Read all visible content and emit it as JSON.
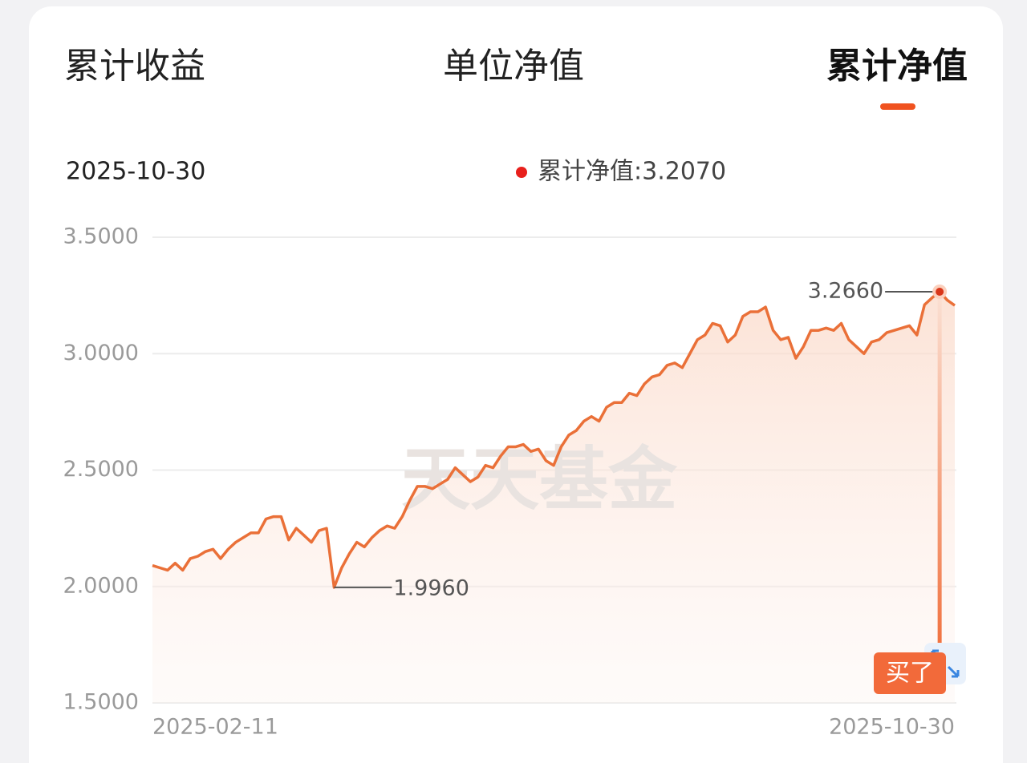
{
  "tabs": {
    "items": [
      "累计收益",
      "单位净值",
      "累计净值"
    ],
    "active": 2
  },
  "header": {
    "date": "2025-10-30",
    "legend_text": "累计净值:3.2070"
  },
  "watermark": "天天基金",
  "button": "买了",
  "chart_data": {
    "type": "line",
    "categories": [
      "2025-02-11",
      null,
      null,
      null,
      null,
      null,
      null,
      null,
      null,
      null,
      null,
      null,
      null,
      null,
      null,
      null,
      null,
      null,
      null,
      null,
      null,
      null,
      null,
      null,
      null,
      null,
      null,
      null,
      null,
      null,
      null,
      null,
      null,
      null,
      null,
      null,
      null,
      null,
      null,
      null,
      null,
      null,
      null,
      null,
      null,
      null,
      null,
      null,
      null,
      null,
      null,
      null,
      null,
      null,
      null,
      null,
      null,
      null,
      null,
      null,
      null,
      null,
      null,
      null,
      null,
      null,
      null,
      null,
      null,
      null,
      null,
      null,
      null,
      null,
      null,
      null,
      null,
      null,
      null,
      null,
      null,
      null,
      null,
      null,
      null,
      null,
      null,
      null,
      null,
      null,
      null,
      null,
      null,
      null,
      null,
      null,
      null,
      null,
      null,
      null,
      null,
      null,
      null,
      null,
      null,
      null,
      "2025-10-30"
    ],
    "series": [
      {
        "name": "累计净值",
        "color": "#ea7038",
        "values": [
          2.09,
          2.08,
          2.07,
          2.1,
          2.07,
          2.12,
          2.13,
          2.15,
          2.16,
          2.12,
          2.16,
          2.19,
          2.21,
          2.23,
          2.23,
          2.29,
          2.3,
          2.3,
          2.2,
          2.25,
          2.22,
          2.19,
          2.24,
          2.25,
          1.996,
          2.08,
          2.14,
          2.19,
          2.17,
          2.21,
          2.24,
          2.26,
          2.25,
          2.3,
          2.37,
          2.43,
          2.43,
          2.42,
          2.44,
          2.46,
          2.51,
          2.48,
          2.45,
          2.47,
          2.52,
          2.51,
          2.56,
          2.6,
          2.6,
          2.61,
          2.58,
          2.59,
          2.54,
          2.52,
          2.6,
          2.65,
          2.67,
          2.71,
          2.73,
          2.71,
          2.77,
          2.79,
          2.79,
          2.83,
          2.82,
          2.87,
          2.9,
          2.91,
          2.95,
          2.96,
          2.94,
          3.0,
          3.06,
          3.08,
          3.13,
          3.12,
          3.05,
          3.08,
          3.16,
          3.18,
          3.18,
          3.2,
          3.1,
          3.06,
          3.07,
          2.98,
          3.03,
          3.1,
          3.1,
          3.11,
          3.1,
          3.13,
          3.06,
          3.03,
          3.0,
          3.05,
          3.06,
          3.09,
          3.1,
          3.11,
          3.12,
          3.08,
          3.21,
          3.24,
          3.266,
          3.23,
          3.207
        ]
      }
    ],
    "ylim": [
      1.5,
      3.5
    ],
    "yticks": [
      {
        "value": 1.5,
        "label": "1.5000"
      },
      {
        "value": 2.0,
        "label": "2.0000"
      },
      {
        "value": 2.5,
        "label": "2.5000"
      },
      {
        "value": 3.0,
        "label": "3.0000"
      },
      {
        "value": 3.5,
        "label": "3.5000"
      }
    ],
    "grid": true,
    "annotations": [
      {
        "value": 1.996,
        "label": "1.9960"
      },
      {
        "value": 3.266,
        "label": "3.2660"
      }
    ]
  }
}
